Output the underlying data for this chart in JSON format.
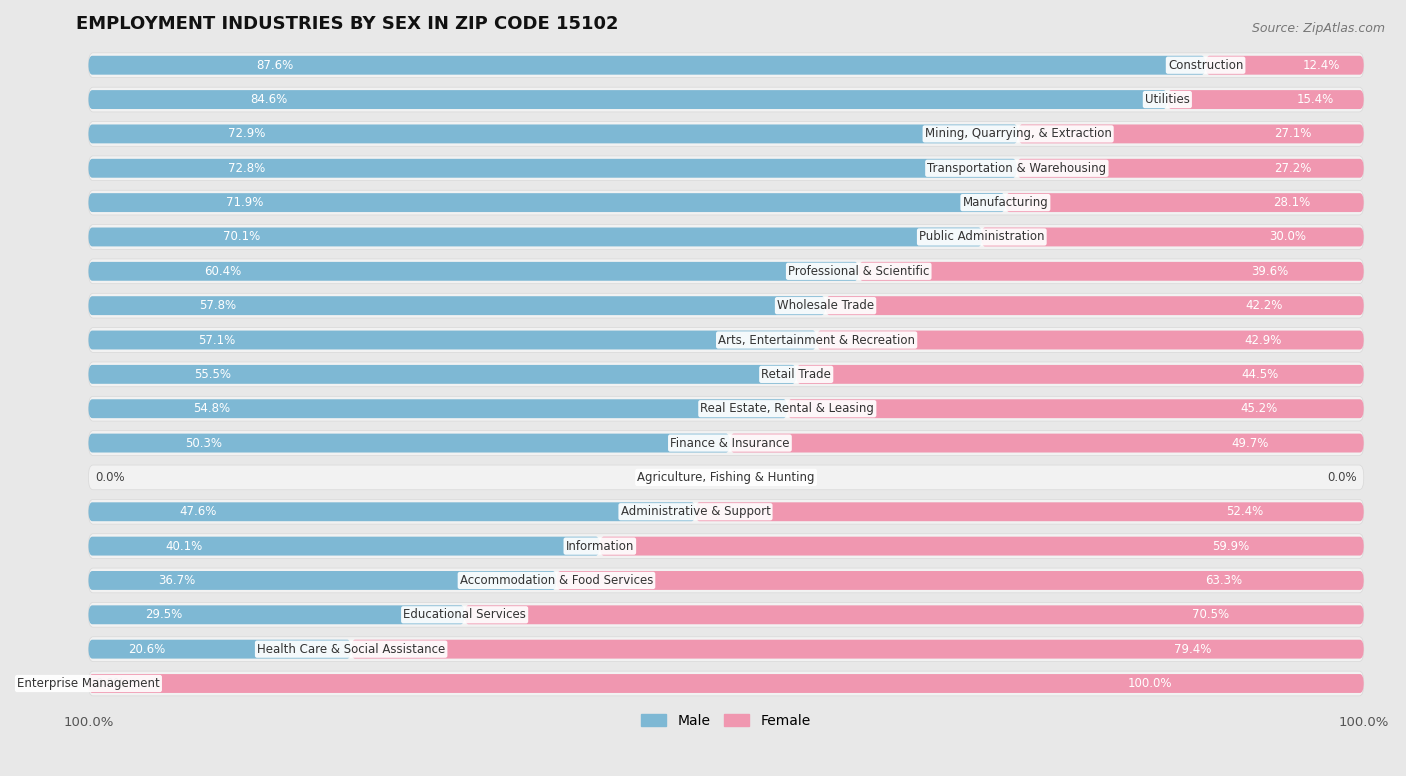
{
  "title": "EMPLOYMENT INDUSTRIES BY SEX IN ZIP CODE 15102",
  "source": "Source: ZipAtlas.com",
  "male_color": "#7eb8d4",
  "female_color": "#f097b0",
  "background_color": "#e8e8e8",
  "pill_color": "#f2f2f2",
  "pill_border_color": "#d8d8d8",
  "categories": [
    "Construction",
    "Utilities",
    "Mining, Quarrying, & Extraction",
    "Transportation & Warehousing",
    "Manufacturing",
    "Public Administration",
    "Professional & Scientific",
    "Wholesale Trade",
    "Arts, Entertainment & Recreation",
    "Retail Trade",
    "Real Estate, Rental & Leasing",
    "Finance & Insurance",
    "Agriculture, Fishing & Hunting",
    "Administrative & Support",
    "Information",
    "Accommodation & Food Services",
    "Educational Services",
    "Health Care & Social Assistance",
    "Enterprise Management"
  ],
  "male_values": [
    87.6,
    84.6,
    72.9,
    72.8,
    71.9,
    70.1,
    60.4,
    57.8,
    57.1,
    55.5,
    54.8,
    50.3,
    0.0,
    47.6,
    40.1,
    36.7,
    29.5,
    20.6,
    0.0
  ],
  "female_values": [
    12.4,
    15.4,
    27.1,
    27.2,
    28.1,
    30.0,
    39.6,
    42.2,
    42.9,
    44.5,
    45.2,
    49.7,
    0.0,
    52.4,
    59.9,
    63.3,
    70.5,
    79.4,
    100.0
  ],
  "title_fontsize": 13,
  "legend_fontsize": 10,
  "label_fontsize": 8.5,
  "cat_fontsize": 8.5
}
